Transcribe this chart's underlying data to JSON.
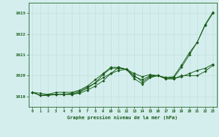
{
  "title": "Graphe pression niveau de la mer (hPa)",
  "background_color": "#d4eeed",
  "grid_color": "#c0dedd",
  "line_color": "#1a5c1a",
  "xlim": [
    -0.5,
    23.5
  ],
  "ylim": [
    1018.5,
    1023.5
  ],
  "yticks": [
    1019,
    1020,
    1021,
    1022,
    1023
  ],
  "xticks": [
    0,
    1,
    2,
    3,
    4,
    5,
    6,
    7,
    8,
    9,
    10,
    11,
    12,
    13,
    14,
    15,
    16,
    17,
    18,
    19,
    20,
    21,
    22,
    23
  ],
  "series": [
    [
      1019.2,
      1019.15,
      1019.1,
      1019.1,
      1019.1,
      1019.1,
      1019.15,
      1019.3,
      1019.5,
      1019.75,
      1020.1,
      1020.4,
      1020.3,
      1019.85,
      1019.6,
      1019.9,
      1020.0,
      1019.9,
      1019.95,
      1020.5,
      1021.1,
      1021.6,
      1022.4,
      1023.0
    ],
    [
      1019.2,
      1019.05,
      1019.05,
      1019.1,
      1019.1,
      1019.1,
      1019.2,
      1019.4,
      1019.65,
      1020.05,
      1020.35,
      1020.35,
      1020.3,
      1019.95,
      1019.8,
      1020.0,
      1020.0,
      1019.85,
      1019.85,
      1020.0,
      1020.0,
      1020.0,
      1020.2,
      1020.5
    ],
    [
      1019.2,
      1019.05,
      1019.05,
      1019.1,
      1019.1,
      1019.15,
      1019.25,
      1019.45,
      1019.65,
      1019.9,
      1020.1,
      1020.25,
      1020.3,
      1020.1,
      1019.95,
      1020.05,
      1020.0,
      1019.85,
      1019.85,
      1019.95,
      1020.1,
      1020.25,
      1020.35,
      1020.55
    ],
    [
      1019.2,
      1019.05,
      1019.1,
      1019.2,
      1019.2,
      1019.2,
      1019.3,
      1019.5,
      1019.8,
      1020.1,
      1020.4,
      1020.4,
      1020.3,
      1020.0,
      1019.7,
      1019.95,
      1020.0,
      1019.9,
      1019.9,
      1020.4,
      1021.0,
      1021.6,
      1022.45,
      1023.05
    ]
  ]
}
